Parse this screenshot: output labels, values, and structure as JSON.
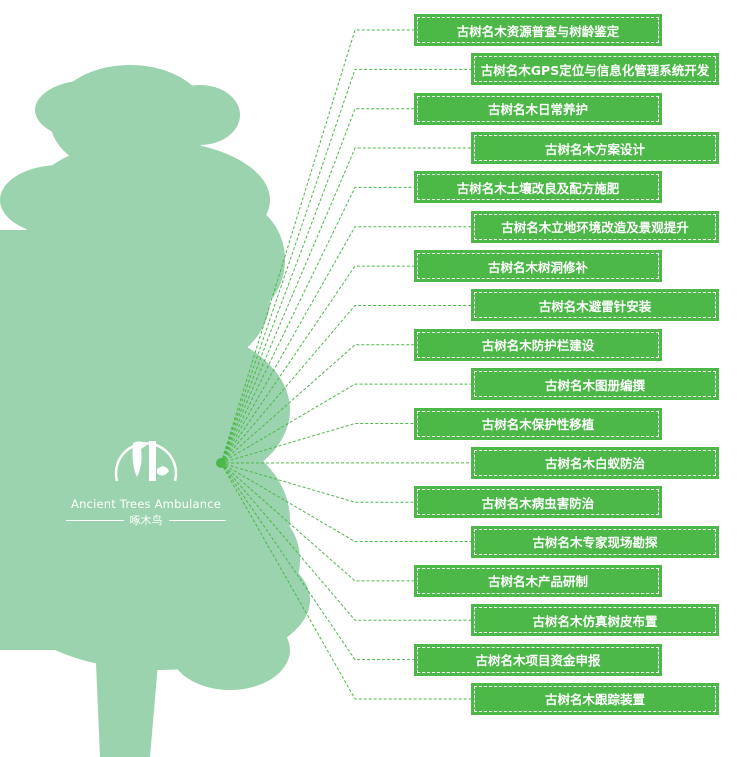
{
  "colors": {
    "tree": "#9ad3ad",
    "box": "#4cb848",
    "connector": "#4cb848"
  },
  "logo": {
    "english": "Ancient Trees Ambulance",
    "chinese": "啄木鸟"
  },
  "services": [
    "古树名木资源普查与树龄鉴定",
    "古树名木GPS定位与信息化管理系统开发",
    "古树名木日常养护",
    "古树名木方案设计",
    "古树名木土壤改良及配方施肥",
    "古树名木立地环境改造及景观提升",
    "古树名木树洞修补",
    "古树名木避雷针安装",
    "古树名木防护栏建设",
    "古树名木图册编撰",
    "古树名木保护性移植",
    "古树名木白蚁防治",
    "古树名木病虫害防治",
    "古树名木专家现场勘探",
    "古树名木产品研制",
    "古树名木仿真树皮布置",
    "古树名木项目资金申报",
    "古树名木跟踪装置"
  ]
}
